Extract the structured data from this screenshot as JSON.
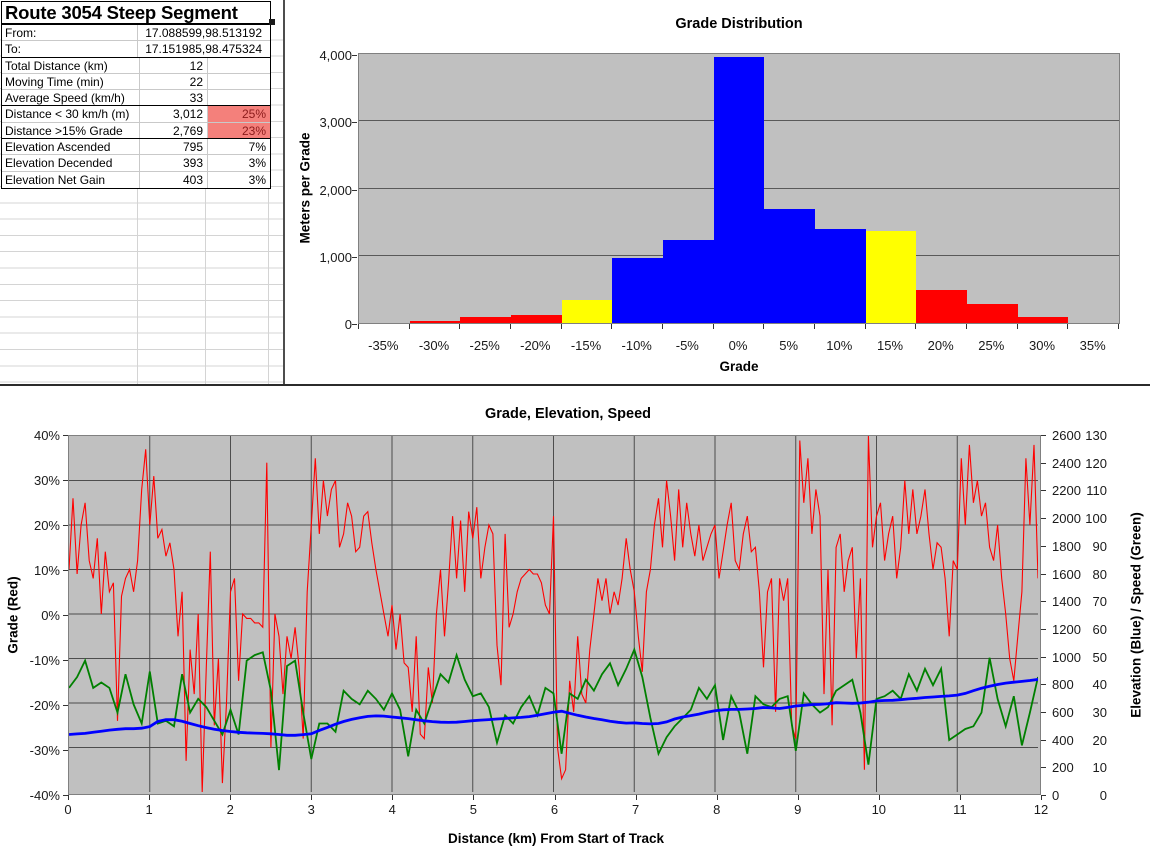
{
  "table": {
    "title": "Route 3054 Steep Segment",
    "rows": [
      {
        "label": "From:",
        "value": "17.088599,98.513192",
        "pct": "",
        "merged": true,
        "highlight": false
      },
      {
        "label": "To:",
        "value": "17.151985,98.475324",
        "pct": "",
        "merged": true,
        "highlight": false
      },
      {
        "label": "Total Distance (km)",
        "value": "12",
        "pct": "",
        "merged": false,
        "highlight": false
      },
      {
        "label": "Moving Time (min)",
        "value": "22",
        "pct": "",
        "merged": false,
        "highlight": false
      },
      {
        "label": "Average Speed (km/h)",
        "value": "33",
        "pct": "",
        "merged": false,
        "highlight": false
      },
      {
        "label": "Distance < 30 km/h (m)",
        "value": "3,012",
        "pct": "25%",
        "merged": false,
        "highlight": true
      },
      {
        "label": "Distance >15% Grade",
        "value": "2,769",
        "pct": "23%",
        "merged": false,
        "highlight": true
      },
      {
        "label": "Elevation Ascended",
        "value": "795",
        "pct": "7%",
        "merged": false,
        "highlight": false
      },
      {
        "label": "Elevation Decended",
        "value": "393",
        "pct": "3%",
        "merged": false,
        "highlight": false
      },
      {
        "label": "Elevation Net Gain",
        "value": "403",
        "pct": "3%",
        "merged": false,
        "highlight": false
      }
    ],
    "group_end_rows": [
      1,
      4,
      6,
      9
    ]
  },
  "colors": {
    "plot_bg": "#c0c0c0",
    "plot_border": "#808080",
    "grid_top": "#595959",
    "grid_bottom": "#4d4d4d",
    "bar_blue": "#0000ff",
    "bar_yellow": "#ffff00",
    "bar_red": "#ff0000",
    "grade_line": "#ff0000",
    "speed_line": "#008000",
    "elevation_line": "#0000ff",
    "highlight_fill": "#f4807b",
    "highlight_text": "#8b1a1a"
  },
  "chart_data": [
    {
      "type": "bar",
      "title": "Grade Distribution",
      "xlabel": "Grade",
      "ylabel": "Meters per Grade",
      "categories": [
        "-35%",
        "-30%",
        "-25%",
        "-20%",
        "-15%",
        "-10%",
        "-5%",
        "0%",
        "5%",
        "10%",
        "15%",
        "20%",
        "25%",
        "30%",
        "35%"
      ],
      "values": [
        0,
        25,
        90,
        120,
        340,
        960,
        1230,
        3950,
        1690,
        1400,
        1370,
        490,
        280,
        90,
        0
      ],
      "bar_colors": [
        "#ff0000",
        "#ff0000",
        "#ff0000",
        "#ff0000",
        "#ffff00",
        "#0000ff",
        "#0000ff",
        "#0000ff",
        "#0000ff",
        "#0000ff",
        "#ffff00",
        "#ff0000",
        "#ff0000",
        "#ff0000",
        "#ff0000"
      ],
      "ylim": [
        0,
        4000
      ],
      "ytick_labels": [
        "0",
        "1,000",
        "2,000",
        "3,000",
        "4,000"
      ],
      "grid": "horizontal",
      "legend": "none"
    },
    {
      "type": "line",
      "title": "Grade, Elevation, Speed",
      "xlabel": "Distance (km) From Start of Track",
      "ylabel_left": "Grade (Red)",
      "ylabel_right": "Elevation (Blue) / Speed (Green)",
      "xlim": [
        0,
        12
      ],
      "xtick_labels": [
        "0",
        "1",
        "2",
        "3",
        "4",
        "5",
        "6",
        "7",
        "8",
        "9",
        "10",
        "11",
        "12"
      ],
      "left_axis": {
        "range": [
          -40,
          40
        ],
        "tick_labels": [
          "40%",
          "30%",
          "20%",
          "10%",
          "0%",
          "-10%",
          "-20%",
          "-30%",
          "-40%"
        ]
      },
      "right_axis_elevation": {
        "range": [
          0,
          2600
        ],
        "tick_labels": [
          "2600",
          "2400",
          "2200",
          "2000",
          "1800",
          "1600",
          "1400",
          "1200",
          "1000",
          "800",
          "600",
          "400",
          "200",
          "0"
        ]
      },
      "right_axis_speed": {
        "range": [
          0,
          130
        ],
        "tick_labels": [
          "130",
          "120",
          "110",
          "100",
          "90",
          "80",
          "70",
          "60",
          "50",
          "40",
          "30",
          "20",
          "10",
          "0"
        ]
      },
      "grid": "both",
      "legend": "none",
      "series": [
        {
          "name": "Grade (Red)",
          "axis": "grade",
          "color": "#ff0000",
          "width": 1.1,
          "x_start": 0,
          "x_step": 0.05,
          "values": [
            10,
            26,
            9,
            20,
            25,
            12,
            8,
            17,
            0,
            14,
            5,
            7,
            -24,
            4,
            8,
            10,
            5,
            12,
            28,
            37,
            20,
            31,
            17,
            19,
            13,
            16,
            10,
            -5,
            5,
            -33,
            -8,
            -18,
            0,
            -40,
            -12,
            14,
            -25,
            -10,
            -38,
            -20,
            5,
            8,
            -15,
            0,
            -1,
            -1,
            -2,
            -2,
            -3,
            34,
            -30,
            0,
            -5,
            -18,
            -5,
            -10,
            -3,
            -12,
            -28,
            5,
            20,
            35,
            18,
            30,
            22,
            28,
            30,
            15,
            18,
            25,
            22,
            14,
            15,
            22,
            23,
            16,
            10,
            5,
            0,
            -5,
            2,
            -8,
            0,
            -11,
            -12,
            -22,
            -5,
            -27,
            -28,
            -12,
            -20,
            0,
            10,
            -5,
            7,
            22,
            8,
            21,
            5,
            23,
            17,
            24,
            8,
            15,
            20,
            18,
            -7,
            -16,
            18,
            -3,
            0,
            5,
            8,
            9,
            10,
            9,
            9,
            7,
            2,
            0,
            22,
            -30,
            -37,
            -35,
            -15,
            -22,
            -5,
            -18,
            -20,
            -8,
            0,
            8,
            3,
            8,
            0,
            5,
            2,
            8,
            17,
            10,
            5,
            -5,
            -13,
            5,
            10,
            20,
            26,
            15,
            30,
            22,
            12,
            28,
            15,
            25,
            18,
            13,
            20,
            12,
            15,
            18,
            20,
            8,
            14,
            20,
            25,
            12,
            10,
            18,
            22,
            14,
            15,
            5,
            -12,
            5,
            8,
            -22,
            8,
            3,
            8,
            -25,
            -28,
            39,
            25,
            35,
            18,
            28,
            22,
            -18,
            10,
            -25,
            15,
            18,
            5,
            12,
            15,
            -10,
            8,
            -35,
            40,
            15,
            22,
            25,
            12,
            18,
            22,
            8,
            15,
            30,
            18,
            28,
            18,
            22,
            28,
            18,
            10,
            16,
            15,
            8,
            -5,
            12,
            10,
            35,
            20,
            38,
            25,
            30,
            22,
            25,
            15,
            12,
            20,
            8,
            0,
            -10,
            -15,
            -5,
            5,
            35,
            20,
            38,
            8
          ]
        },
        {
          "name": "Speed (Green)",
          "axis": "speed",
          "color": "#008000",
          "width": 1.8,
          "x_start": 0,
          "x_step": 0.1,
          "values": [
            38,
            42,
            48,
            38,
            40,
            38,
            29,
            43,
            32,
            25,
            44,
            25,
            26,
            24,
            43,
            29,
            34,
            31,
            26,
            21,
            30,
            21,
            48,
            50,
            51,
            37,
            8,
            46,
            48,
            29,
            12,
            25,
            25,
            22,
            37,
            34,
            32,
            37,
            34,
            30,
            36,
            30,
            13,
            30,
            25,
            34,
            43,
            40,
            50,
            41,
            35,
            36,
            31,
            18,
            28,
            25,
            31,
            35,
            28,
            38,
            36,
            14,
            36,
            34,
            41,
            37,
            43,
            47,
            39,
            45,
            52,
            42,
            27,
            14,
            20,
            24,
            27,
            30,
            38,
            34,
            39,
            19,
            35,
            29,
            14,
            35,
            32,
            31,
            34,
            35,
            15,
            36,
            32,
            29,
            31,
            37,
            39,
            41,
            29,
            10,
            34,
            35,
            37,
            34,
            43,
            37,
            45,
            39,
            45,
            19,
            21,
            23,
            24,
            29,
            49,
            34,
            24,
            35,
            17,
            29,
            42
          ]
        },
        {
          "name": "Elevation (Blue)",
          "axis": "elevation",
          "color": "#0000ff",
          "width": 2.8,
          "x_start": 0,
          "x_step": 0.1,
          "values": [
            420,
            424,
            428,
            436,
            444,
            452,
            458,
            462,
            462,
            466,
            478,
            515,
            528,
            528,
            516,
            500,
            484,
            470,
            458,
            449,
            442,
            436,
            432,
            430,
            428,
            425,
            420,
            414,
            414,
            419,
            425,
            450,
            472,
            495,
            515,
            530,
            543,
            552,
            556,
            554,
            548,
            542,
            536,
            528,
            520,
            514,
            510,
            508,
            510,
            515,
            521,
            525,
            529,
            533,
            537,
            541,
            545,
            551,
            560,
            572,
            583,
            590,
            575,
            560,
            548,
            537,
            527,
            517,
            509,
            503,
            505,
            500,
            497,
            500,
            512,
            533,
            548,
            558,
            569,
            582,
            594,
            600,
            603,
            603,
            606,
            610,
            617,
            614,
            610,
            618,
            628,
            633,
            638,
            640,
            645,
            652,
            650,
            648,
            650,
            656,
            665,
            668,
            670,
            674,
            680,
            684,
            690,
            694,
            698,
            702,
            708,
            720,
            740,
            758,
            772,
            785,
            795,
            802,
            808,
            814,
            822
          ]
        }
      ]
    }
  ]
}
